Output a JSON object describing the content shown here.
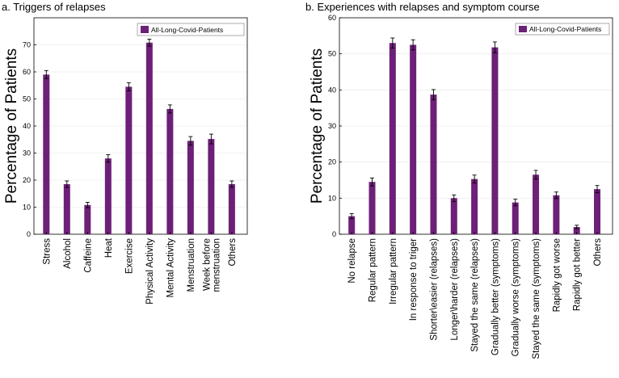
{
  "chart_data": [
    {
      "type": "bar",
      "title": "a. Triggers of relapses",
      "ylabel": "Percentage of Patients",
      "xlabel": "",
      "ylim": [
        0,
        80
      ],
      "yticks": [
        0,
        10,
        20,
        30,
        40,
        50,
        60,
        70
      ],
      "grid": true,
      "legend": {
        "position": "top-right",
        "entries": [
          "All-Long-Covid-Patients"
        ]
      },
      "color": "#6d2077",
      "categories": [
        "Stress",
        "Alcohol",
        "Caffeine",
        "Heat",
        "Exercise",
        "Physical Activity",
        "Mental Activity",
        "Menstruation",
        "Week before menstruation",
        "Others"
      ],
      "category_lines": [
        [
          "Stress"
        ],
        [
          "Alcohol"
        ],
        [
          "Caffeine"
        ],
        [
          "Heat"
        ],
        [
          "Exercise"
        ],
        [
          "Physical Activity"
        ],
        [
          "Mental Activity"
        ],
        [
          "Menstruation"
        ],
        [
          "Week before",
          "menstruation"
        ],
        [
          "Others"
        ]
      ],
      "series": [
        {
          "name": "All-Long-Covid-Patients",
          "values": [
            59,
            18.5,
            10.8,
            28,
            54.5,
            70.8,
            46.3,
            34.5,
            35.2,
            18.5
          ],
          "errors": [
            1.5,
            1.2,
            1.0,
            1.4,
            1.5,
            1.3,
            1.5,
            1.6,
            1.8,
            1.2
          ]
        }
      ]
    },
    {
      "type": "bar",
      "title": "b. Experiences with relapses and symptom course",
      "ylabel": "Percentage of Patients",
      "xlabel": "",
      "ylim": [
        0,
        60
      ],
      "yticks": [
        0,
        10,
        20,
        30,
        40,
        50,
        60
      ],
      "grid": true,
      "legend": {
        "position": "top-right",
        "entries": [
          "All-Long-Covid-Patients"
        ]
      },
      "color": "#6d2077",
      "categories": [
        "No relapse",
        "Regular pattern",
        "Irregular pattern",
        "In response to triger",
        "Shorter\\easier (relapses)",
        "Longer\\harder (relapses)",
        "Stayed the same (relapses)",
        "Gradually better (symptoms)",
        "Gradually worse (symptoms)",
        "Stayed the same (symptoms)",
        "Rapidly got worse",
        "Rapidly got better",
        "Others"
      ],
      "category_lines": [
        [
          "No relapse"
        ],
        [
          "Regular pattern"
        ],
        [
          "Irregular pattern"
        ],
        [
          "In response to triger"
        ],
        [
          "Shorter\\easier (relapses)"
        ],
        [
          "Longer\\harder (relapses)"
        ],
        [
          "Stayed the same (relapses)"
        ],
        [
          "Gradually better (symptoms)"
        ],
        [
          "Gradually worse (symptoms)"
        ],
        [
          "Stayed the same (symptoms)"
        ],
        [
          "Rapidly got worse"
        ],
        [
          "Rapidly got better"
        ],
        [
          "Others"
        ]
      ],
      "series": [
        {
          "name": "All-Long-Covid-Patients",
          "values": [
            5,
            14.5,
            53,
            52.5,
            38.7,
            10,
            15.3,
            51.8,
            8.8,
            16.5,
            10.8,
            2,
            12.5
          ],
          "errors": [
            0.7,
            1.1,
            1.4,
            1.4,
            1.4,
            0.9,
            1.1,
            1.5,
            0.9,
            1.2,
            0.9,
            0.5,
            1.0
          ]
        }
      ]
    }
  ]
}
